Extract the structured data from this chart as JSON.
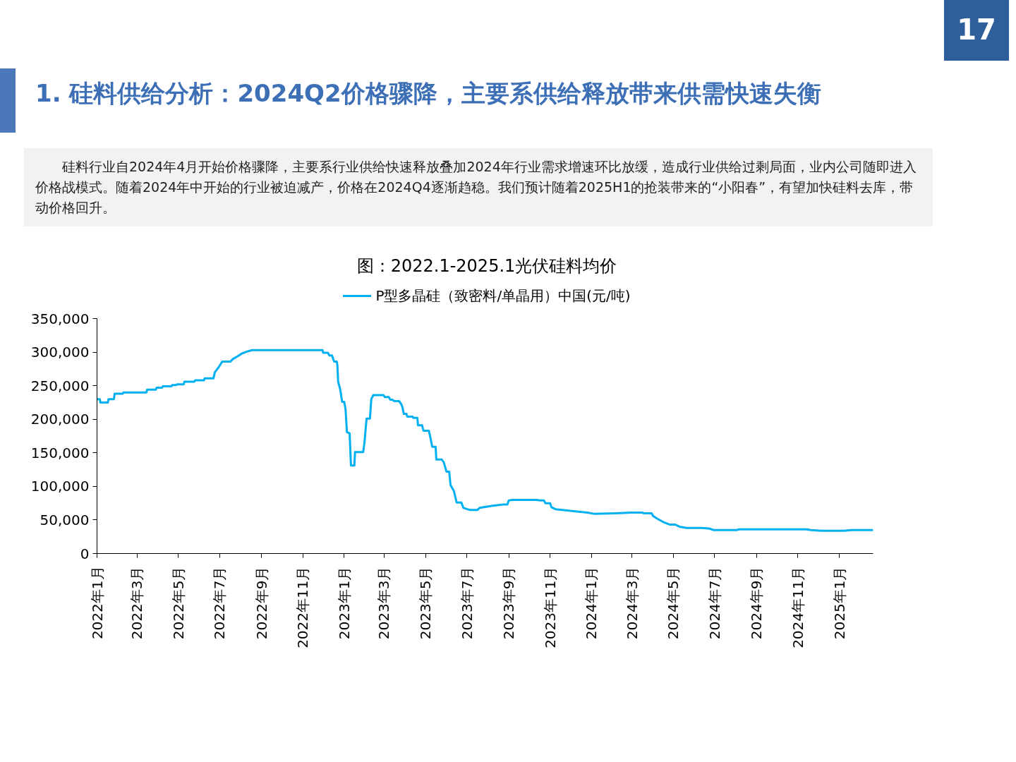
{
  "chart_data": {
    "type": "line",
    "title": "1. 硅料供给分析：2024Q2价格骤降，主要系供给释放带来供需快速失衡",
    "subtitle": "图：2022.1-2025.1光伏硅料均价",
    "annotations": [
      "17",
      "硅料行业自2024年4月开始价格骤降，主要系行业供给快速释放叠加2024年行业需求增速环比放缓，造成行业供给过剩局面，业内公司随即进入价格战模式。随着2024年中开始的行业被迫减产，价格在2024Q4逐渐趋稳。我们预计随着2025H1的抢装带来的“小阳春”，有望加快硅料去库，带动价格回升。"
    ],
    "x": [
      "2022-01-01",
      "2022-01-05",
      "2022-01-06",
      "2022-01-17",
      "2022-01-18",
      "2022-01-26",
      "2022-01-27",
      "2022-02-08",
      "2022-02-09",
      "2022-03-15",
      "2022-03-16",
      "2022-03-29",
      "2022-03-30",
      "2022-04-07",
      "2022-04-08",
      "2022-04-21",
      "2022-04-22",
      "2022-04-28",
      "2022-04-29",
      "2022-05-09",
      "2022-05-10",
      "2022-05-25",
      "2022-05-26",
      "2022-06-08",
      "2022-06-09",
      "2022-06-22",
      "2022-06-24",
      "2022-06-30",
      "2022-07-05",
      "2022-07-17",
      "2022-07-21",
      "2022-07-28",
      "2022-08-03",
      "2022-08-11",
      "2022-08-18",
      "2022-11-30",
      "2022-12-01",
      "2022-12-08",
      "2022-12-10",
      "2022-12-14",
      "2022-12-17",
      "2022-12-21",
      "2022-12-22",
      "2022-12-23",
      "2022-12-26",
      "2022-12-29",
      "2023-01-01",
      "2023-01-03",
      "2023-01-05",
      "2023-01-09",
      "2023-01-11",
      "2023-01-16",
      "2023-01-17",
      "2023-01-29",
      "2023-01-31",
      "2023-02-03",
      "2023-02-08",
      "2023-02-10",
      "2023-02-13",
      "2023-02-28",
      "2023-03-02",
      "2023-03-08",
      "2023-03-10",
      "2023-03-13",
      "2023-03-16",
      "2023-03-23",
      "2023-03-26",
      "2023-03-28",
      "2023-03-30",
      "2023-04-03",
      "2023-04-04",
      "2023-04-12",
      "2023-04-13",
      "2023-04-19",
      "2023-04-20",
      "2023-04-26",
      "2023-04-28",
      "2023-05-06",
      "2023-05-08",
      "2023-05-11",
      "2023-05-16",
      "2023-05-17",
      "2023-05-25",
      "2023-05-28",
      "2023-06-01",
      "2023-06-05",
      "2023-06-07",
      "2023-06-12",
      "2023-06-16",
      "2023-06-23",
      "2023-06-26",
      "2023-07-05",
      "2023-07-17",
      "2023-07-20",
      "2023-08-07",
      "2023-08-24",
      "2023-08-30",
      "2023-09-01",
      "2023-09-08",
      "2023-10-11",
      "2023-10-17",
      "2023-10-23",
      "2023-10-25",
      "2023-11-01",
      "2023-11-03",
      "2023-11-09",
      "2023-12-06",
      "2023-12-26",
      "2024-01-06",
      "2024-02-06",
      "2024-02-29",
      "2024-03-16",
      "2024-03-18",
      "2024-03-30",
      "2024-04-01",
      "2024-04-07",
      "2024-04-16",
      "2024-04-26",
      "2024-05-04",
      "2024-05-10",
      "2024-05-20",
      "2024-06-12",
      "2024-06-24",
      "2024-06-29",
      "2024-08-03",
      "2024-08-06",
      "2024-11-13",
      "2024-11-20",
      "2024-12-06",
      "2025-01-08",
      "2025-01-19",
      "2025-02-20"
    ],
    "series": [
      {
        "name": "P型多晶硅（致密料/单晶用）中国(元/吨)",
        "color": "#00b0f0",
        "values": [
          230000,
          230000,
          225000,
          225000,
          230000,
          230000,
          238000,
          238000,
          240000,
          240000,
          244000,
          244000,
          247000,
          247000,
          249000,
          249000,
          251000,
          251000,
          252000,
          252000,
          256000,
          256000,
          258000,
          258000,
          261000,
          261000,
          270000,
          278000,
          286000,
          286000,
          290000,
          294000,
          298000,
          301000,
          303000,
          303000,
          299000,
          299000,
          295000,
          295000,
          286000,
          286000,
          280000,
          256000,
          245000,
          226000,
          226000,
          215000,
          181000,
          179000,
          131000,
          131000,
          151000,
          151000,
          166000,
          201000,
          201000,
          230000,
          236000,
          236000,
          233000,
          233000,
          229000,
          229000,
          227000,
          227000,
          223000,
          218000,
          208000,
          208000,
          204000,
          204000,
          202000,
          202000,
          191000,
          191000,
          183000,
          183000,
          174000,
          159000,
          159000,
          140000,
          140000,
          136000,
          122000,
          122000,
          102000,
          93000,
          76000,
          76000,
          68000,
          65000,
          65000,
          68000,
          71000,
          73000,
          73000,
          79000,
          80000,
          80000,
          79000,
          79000,
          75000,
          75000,
          69000,
          66000,
          63000,
          61000,
          59000,
          60000,
          61000,
          61000,
          60000,
          60000,
          56000,
          52000,
          47000,
          43000,
          43000,
          40000,
          38000,
          38000,
          37000,
          35000,
          35000,
          36000,
          36000,
          35000,
          34000,
          34000,
          35000,
          35000
        ]
      }
    ],
    "xlim": [
      "2022-01-01",
      "2025-02-20"
    ],
    "xticks": [
      {
        "value": "2022-01",
        "label": "2022年1月"
      },
      {
        "value": "2022-03",
        "label": "2022年3月"
      },
      {
        "value": "2022-05",
        "label": "2022年5月"
      },
      {
        "value": "2022-07",
        "label": "2022年7月"
      },
      {
        "value": "2022-09",
        "label": "2022年9月"
      },
      {
        "value": "2022-11",
        "label": "2022年11月"
      },
      {
        "value": "2023-01",
        "label": "2023年1月"
      },
      {
        "value": "2023-03",
        "label": "2023年3月"
      },
      {
        "value": "2023-05",
        "label": "2023年5月"
      },
      {
        "value": "2023-07",
        "label": "2023年7月"
      },
      {
        "value": "2023-09",
        "label": "2023年9月"
      },
      {
        "value": "2023-11",
        "label": "2023年11月"
      },
      {
        "value": "2024-01",
        "label": "2024年1月"
      },
      {
        "value": "2024-03",
        "label": "2024年3月"
      },
      {
        "value": "2024-05",
        "label": "2024年5月"
      },
      {
        "value": "2024-07",
        "label": "2024年7月"
      },
      {
        "value": "2024-09",
        "label": "2024年9月"
      },
      {
        "value": "2024-11",
        "label": "2024年11月"
      },
      {
        "value": "2025-01",
        "label": "2025年1月"
      }
    ],
    "ylim": [
      0,
      350000
    ],
    "yticks": [
      0,
      {
        "value": 50000,
        "label": "50,000"
      },
      {
        "value": 100000,
        "label": "100,000"
      },
      {
        "value": 150000,
        "label": "150,000"
      },
      {
        "value": 200000,
        "label": "200,000"
      },
      {
        "value": 250000,
        "label": "250,000"
      },
      {
        "value": 300000,
        "label": "300,000"
      },
      {
        "value": 350000,
        "label": "350,000"
      }
    ],
    "grid": false,
    "legend": "top",
    "marker": "none",
    "line_style": "solid"
  }
}
